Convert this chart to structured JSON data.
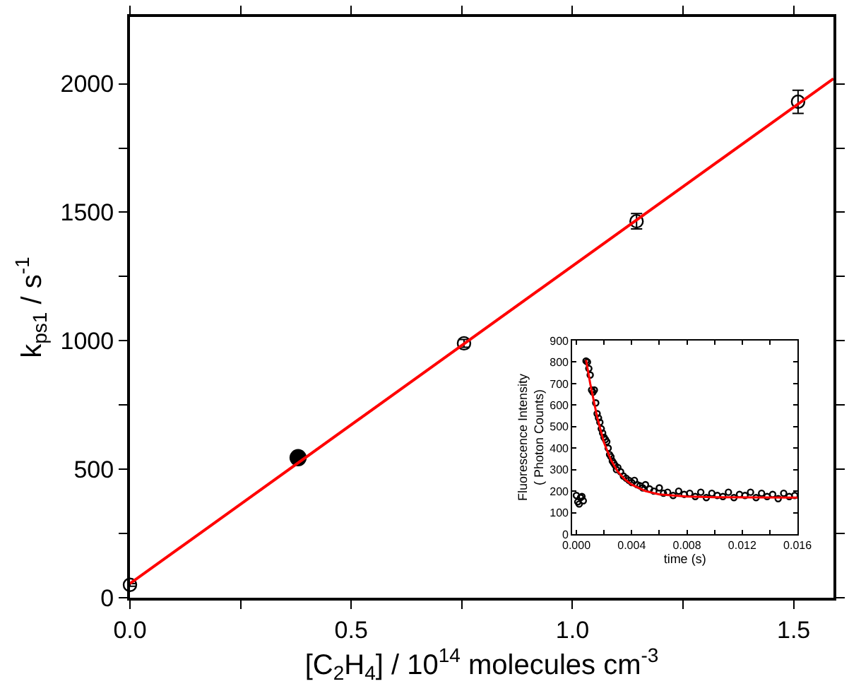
{
  "chart_data": [
    {
      "type": "scatter",
      "xlabel": "[C$_{2}$H$_{4}$] / 10$^{14}$ molecules cm$^{-3}$",
      "ylabel": "k$_{ps1}$ / s$^{-1}$",
      "xlim": [
        0,
        1.59
      ],
      "ylim": [
        0,
        2260
      ],
      "xticks": [
        {
          "value": 0,
          "label": "0.0"
        },
        {
          "value": 0.25,
          "label": null
        },
        {
          "value": 0.5,
          "label": "0.5"
        },
        {
          "value": 0.75,
          "label": null
        },
        {
          "value": 1.0,
          "label": "1.0"
        },
        {
          "value": 1.25,
          "label": null
        },
        {
          "value": 1.5,
          "label": "1.5"
        }
      ],
      "yticks": [
        0,
        {
          "value": 250,
          "label": null
        },
        500,
        {
          "value": 750,
          "label": null
        },
        1000,
        {
          "value": 1250,
          "label": null
        },
        1500,
        {
          "value": 1750,
          "label": null
        },
        2000
      ],
      "legend": false,
      "series": [
        {
          "color": "#000000",
          "marker": "circle",
          "x": [
            0,
            0.755,
            1.145,
            1.51
          ],
          "values": [
            50,
            990,
            1465,
            1930
          ],
          "errors": [
            5,
            15,
            30,
            45
          ]
        },
        {
          "color": "#000000",
          "marker": "circle",
          "x": [
            0.38
          ],
          "values": [
            545
          ]
        },
        {
          "type": "line",
          "marker": "none",
          "color": "#ff0000",
          "x": [
            0,
            1.59
          ],
          "values": [
            55,
            2020
          ]
        }
      ]
    },
    {
      "type": "scatter",
      "xlabel": "time (s)",
      "ylabel": "Fluorescence Intensity\n( Photon Counts)",
      "xlim": [
        -0.0003,
        0.016
      ],
      "ylim": [
        0,
        900
      ],
      "xticks": [
        {
          "value": 0,
          "label": "0.000"
        },
        {
          "value": 0.002,
          "label": null
        },
        {
          "value": 0.004,
          "label": "0.004"
        },
        {
          "value": 0.006,
          "label": null
        },
        {
          "value": 0.008,
          "label": "0.008"
        },
        {
          "value": 0.01,
          "label": null
        },
        {
          "value": 0.012,
          "label": "0.012"
        },
        {
          "value": 0.014,
          "label": null
        },
        {
          "value": 0.016,
          "label": "0.016"
        }
      ],
      "yticks": [
        0,
        100,
        200,
        300,
        400,
        500,
        600,
        700,
        800,
        900
      ],
      "legend": false,
      "series": [
        {
          "color": "#000000",
          "marker": "circle",
          "x": [
            0.0,
            0.0001,
            0.0002,
            0.0003,
            0.0004,
            0.0005,
            0.0007,
            0.0008,
            0.0009,
            0.001,
            0.0011,
            0.0012,
            0.0013,
            0.0014,
            0.0015,
            0.0016,
            0.0017,
            0.0018,
            0.0019,
            0.002,
            0.0021,
            0.0022,
            0.0023,
            0.0024,
            0.0025,
            0.0026,
            0.0027,
            0.0028,
            0.0029,
            0.003,
            0.0032,
            0.0034,
            0.0036,
            0.0038,
            0.004,
            0.0042,
            0.0044,
            0.0046,
            0.0048,
            0.005,
            0.0053,
            0.0056,
            0.006,
            0.0063,
            0.0066,
            0.007,
            0.0074,
            0.0078,
            0.0082,
            0.0086,
            0.009,
            0.0094,
            0.0098,
            0.0102,
            0.0106,
            0.011,
            0.0114,
            0.0118,
            0.0122,
            0.0126,
            0.013,
            0.0134,
            0.0138,
            0.0142,
            0.0146,
            0.015,
            0.0154,
            0.0158
          ],
          "values": [
            180,
            150,
            140,
            170,
            175,
            155,
            805,
            800,
            770,
            740,
            670,
            660,
            670,
            610,
            560,
            540,
            520,
            490,
            470,
            450,
            440,
            430,
            400,
            370,
            360,
            340,
            330,
            320,
            300,
            310,
            290,
            270,
            260,
            250,
            240,
            250,
            230,
            225,
            215,
            230,
            210,
            200,
            215,
            190,
            195,
            180,
            200,
            185,
            190,
            175,
            195,
            170,
            190,
            180,
            175,
            195,
            170,
            185,
            180,
            195,
            170,
            190,
            175,
            185,
            165,
            190,
            175,
            180
          ]
        },
        {
          "type": "line",
          "marker": "none",
          "color": "#ff0000",
          "x": [
            0.0007,
            0.001,
            0.0015,
            0.002,
            0.0025,
            0.003,
            0.0035,
            0.004,
            0.005,
            0.006,
            0.008,
            0.01,
            0.016
          ],
          "values": [
            810,
            700,
            545,
            425,
            345,
            290,
            255,
            230,
            200,
            185,
            175,
            172,
            170
          ]
        }
      ]
    }
  ]
}
